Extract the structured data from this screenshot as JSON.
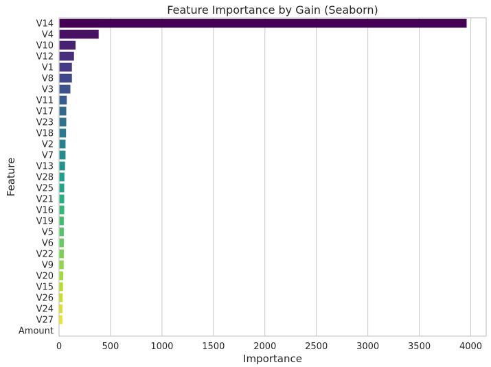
{
  "chart_data": {
    "type": "bar",
    "orientation": "horizontal",
    "title": "Feature Importance by Gain (Seaborn)",
    "xlabel": "Importance",
    "ylabel": "Feature",
    "xlim": [
      0,
      4150
    ],
    "xticks": [
      0,
      500,
      1000,
      1500,
      2000,
      2500,
      3000,
      3500,
      4000
    ],
    "grid": "vertical",
    "palette": "viridis",
    "categories": [
      "V14",
      "V4",
      "V10",
      "V12",
      "V1",
      "V8",
      "V3",
      "V11",
      "V17",
      "V23",
      "V18",
      "V2",
      "V7",
      "V13",
      "V28",
      "V25",
      "V21",
      "V16",
      "V19",
      "V5",
      "V6",
      "V22",
      "V9",
      "V20",
      "V15",
      "V26",
      "V24",
      "V27",
      "Amount"
    ],
    "values": [
      3960,
      385,
      160,
      145,
      125,
      125,
      110,
      75,
      70,
      70,
      68,
      63,
      63,
      58,
      52,
      50,
      50,
      50,
      46,
      46,
      46,
      46,
      45,
      40,
      38,
      35,
      33,
      32,
      0
    ],
    "colors": [
      "#440154",
      "#471164",
      "#482173",
      "#472f7d",
      "#443b84",
      "#3f4889",
      "#3b528b",
      "#365d8d",
      "#31688e",
      "#2d718e",
      "#297b8e",
      "#26828e",
      "#228c8d",
      "#1f958b",
      "#1f9e89",
      "#21a685",
      "#28ae80",
      "#35b779",
      "#42be71",
      "#52c569",
      "#65cb5e",
      "#79d151",
      "#8ed645",
      "#a2da37",
      "#b5de2b",
      "#c8e020",
      "#dde318",
      "#efe51c",
      "#fde725"
    ]
  }
}
